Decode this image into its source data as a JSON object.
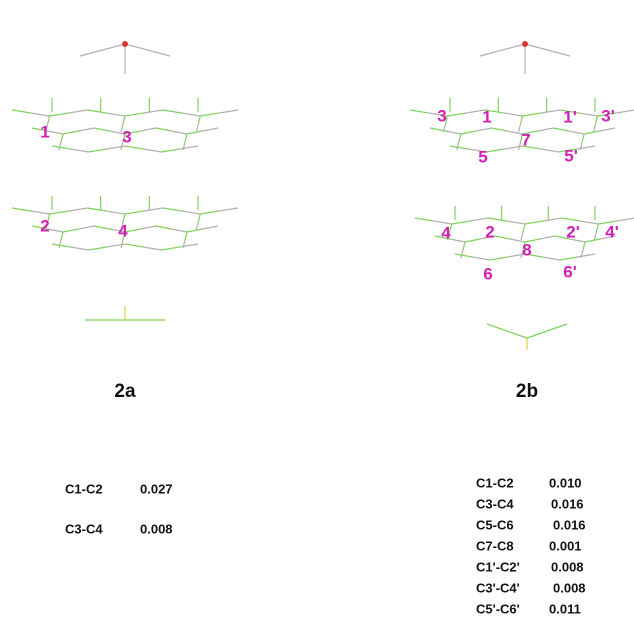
{
  "panels": [
    {
      "title": "2a",
      "atom_labels": [
        "1",
        "3",
        "2",
        "4"
      ],
      "distances": [
        [
          "C1-C2",
          "0.027"
        ],
        [
          "C3-C4",
          "0.008"
        ]
      ]
    },
    {
      "title": "2b",
      "atom_labels": [
        "3",
        "1",
        "1'",
        "3'",
        "7",
        "5",
        "5'",
        "4",
        "2",
        "2'",
        "4'",
        "8",
        "6",
        "6'"
      ],
      "distances": [
        [
          "C1-C2",
          "0.010"
        ],
        [
          "C3-C4",
          "0.016"
        ],
        [
          "C5-C6",
          "0.016"
        ],
        [
          "C7-C8",
          "0.001"
        ],
        [
          "C1'-C2'",
          "0.008"
        ],
        [
          "C3'-C4'",
          "0.008"
        ],
        [
          "C5'-C6'",
          "0.011"
        ]
      ]
    }
  ]
}
